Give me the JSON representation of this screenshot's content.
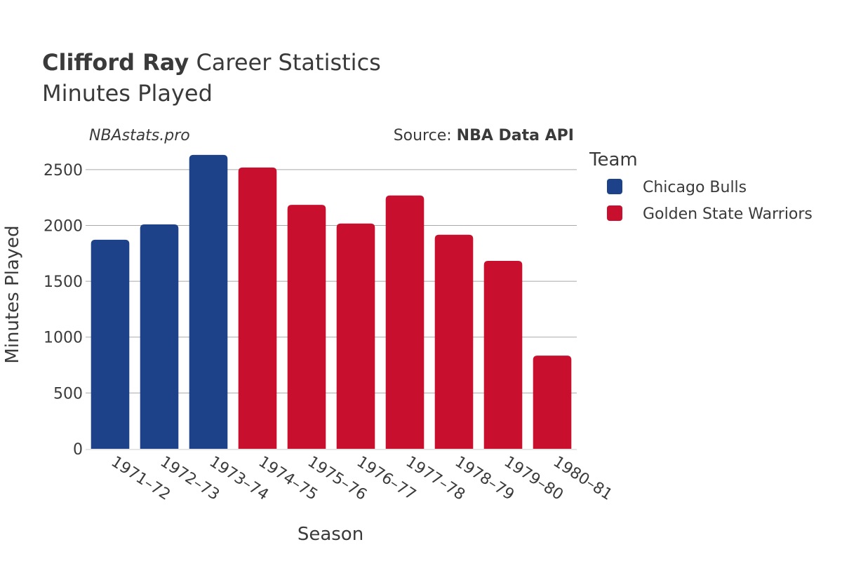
{
  "header": {
    "title_bold": "Clifford Ray",
    "title_rest": " Career Statistics",
    "subtitle": "Minutes Played",
    "brand": "NBAstats.pro",
    "source_label": "Source: ",
    "source_name": "NBA Data API"
  },
  "legend": {
    "title": "Team",
    "items": [
      {
        "label": "Chicago Bulls",
        "color": "#1d428a"
      },
      {
        "label": "Golden State Warriors",
        "color": "#c8102e"
      }
    ]
  },
  "chart_data": {
    "type": "bar",
    "xlabel": "Season",
    "ylabel": "Minutes Played",
    "ylim": [
      0,
      2700
    ],
    "yticks": [
      0,
      500,
      1000,
      1500,
      2000,
      2500
    ],
    "grid": true,
    "legend_position": "right",
    "categories": [
      "1971–72",
      "1972–73",
      "1973–74",
      "1974–75",
      "1975–76",
      "1976–77",
      "1977–78",
      "1978–79",
      "1979–80",
      "1980–81"
    ],
    "values": [
      1872,
      2009,
      2632,
      2519,
      2184,
      2017,
      2268,
      1917,
      1683,
      834
    ],
    "teams": [
      "Chicago Bulls",
      "Chicago Bulls",
      "Chicago Bulls",
      "Golden State Warriors",
      "Golden State Warriors",
      "Golden State Warriors",
      "Golden State Warriors",
      "Golden State Warriors",
      "Golden State Warriors",
      "Golden State Warriors"
    ],
    "colors": {
      "Chicago Bulls": "#1d428a",
      "Golden State Warriors": "#c8102e"
    }
  }
}
